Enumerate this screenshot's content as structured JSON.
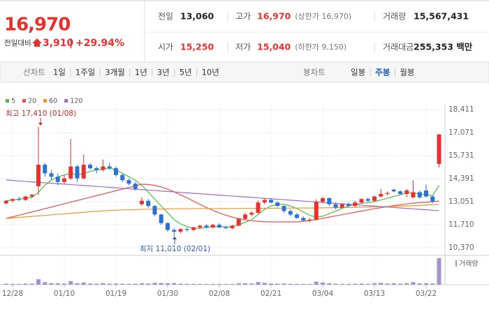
{
  "header": {
    "price": "16,970",
    "change_label": "전일대비",
    "change": "3,910",
    "change_rate": "+29.94%",
    "rows": [
      [
        {
          "label": "전일",
          "value": "13,060"
        },
        {
          "label": "고가",
          "value": "16,970",
          "note": "(상한가 16,970)"
        },
        {
          "label": "거래량",
          "value": "15,567,431"
        }
      ],
      [
        {
          "label": "시가",
          "value": "15,250"
        },
        {
          "label": "저가",
          "value": "15,040",
          "note": "(하한가 9,150)"
        },
        {
          "label": "거래대금",
          "value": "255,353 백만"
        }
      ]
    ]
  },
  "toolbar": {
    "line_chart": "선차트",
    "periods": [
      "1일",
      "1주일",
      "3개월",
      "1년",
      "3년",
      "5년",
      "10년"
    ],
    "candle_chart": "봉차트",
    "candle_types": [
      "일봉",
      "주봉",
      "월봉"
    ],
    "selected_candle_type": 1
  },
  "chart_data": {
    "type": "candlestick",
    "annotations": {
      "high": "최고 17,410 (01/08)",
      "low": "최저 11,010 (02/01)"
    },
    "volume_label": "거래량",
    "up_color": "#e8312f",
    "down_color": "#2a72d6",
    "volume_color": "#a592cf",
    "categories": [
      null,
      "12/28",
      null,
      null,
      null,
      null,
      null,
      null,
      null,
      "01/10",
      null,
      null,
      null,
      null,
      null,
      null,
      null,
      "01/19",
      null,
      null,
      null,
      null,
      null,
      null,
      null,
      "01/30",
      null,
      null,
      null,
      null,
      null,
      null,
      null,
      "02/08",
      null,
      null,
      null,
      null,
      null,
      null,
      null,
      "02/21",
      null,
      null,
      null,
      null,
      null,
      null,
      null,
      "03/04",
      null,
      null,
      null,
      null,
      null,
      null,
      null,
      "03/13",
      null,
      null,
      null,
      null,
      null,
      null,
      null,
      "03/22",
      null,
      null
    ],
    "open": [
      12950,
      13100,
      13200,
      13150,
      13350,
      13950,
      15200,
      14700,
      14500,
      14200,
      14400,
      15100,
      14400,
      15200,
      15000,
      14900,
      15100,
      15000,
      14600,
      14300,
      14100,
      12900,
      13100,
      12800,
      12300,
      11800,
      11400,
      11300,
      11450,
      11400,
      11550,
      11650,
      11550,
      11700,
      11550,
      11500,
      11650,
      12050,
      12300,
      12400,
      13000,
      13150,
      13000,
      12800,
      12500,
      12300,
      12100,
      11950,
      12000,
      13050,
      13250,
      12900,
      12700,
      12900,
      12800,
      13000,
      13200,
      13100,
      13350,
      13500,
      13750,
      13650,
      13500,
      13300,
      13600,
      13700,
      13350,
      15250
    ],
    "high": [
      13150,
      13250,
      13350,
      13400,
      13500,
      17410,
      15300,
      14900,
      14700,
      14600,
      16700,
      15200,
      15800,
      15300,
      15100,
      15500,
      15300,
      15100,
      14700,
      14400,
      14200,
      13300,
      13200,
      12850,
      12350,
      11850,
      11500,
      11500,
      11550,
      11600,
      11700,
      11750,
      11750,
      11800,
      11650,
      11700,
      12100,
      12400,
      12500,
      13100,
      13250,
      13250,
      13050,
      12850,
      12600,
      12400,
      12200,
      12100,
      13200,
      13350,
      13300,
      13000,
      12950,
      13000,
      13100,
      13250,
      13300,
      13400,
      13800,
      13650,
      13800,
      13700,
      13800,
      14300,
      13700,
      14050,
      13400,
      16970
    ],
    "low": [
      12900,
      13000,
      13100,
      13100,
      13250,
      13450,
      14500,
      14300,
      14000,
      14100,
      14300,
      14200,
      14350,
      14900,
      14700,
      14800,
      14900,
      14500,
      14200,
      14000,
      13700,
      12800,
      12700,
      12200,
      11700,
      11300,
      11010,
      11200,
      11300,
      11350,
      11450,
      11500,
      11500,
      11500,
      11450,
      11450,
      11600,
      12000,
      12200,
      12350,
      12900,
      12950,
      12750,
      12400,
      12200,
      12050,
      11900,
      11850,
      11950,
      12950,
      12800,
      12600,
      12650,
      12750,
      12750,
      12950,
      13050,
      13050,
      13300,
      13400,
      13600,
      13450,
      13300,
      13250,
      13200,
      13300,
      12950,
      15040
    ],
    "close": [
      13100,
      13200,
      13150,
      13350,
      13450,
      15200,
      14700,
      14500,
      14200,
      14400,
      15100,
      14400,
      15200,
      15000,
      14900,
      15100,
      15000,
      14600,
      14300,
      14100,
      13800,
      13100,
      12800,
      12300,
      11800,
      11400,
      11300,
      11450,
      11400,
      11550,
      11650,
      11550,
      11700,
      11550,
      11500,
      11650,
      12050,
      12300,
      12400,
      13000,
      13150,
      13000,
      12800,
      12500,
      12300,
      12100,
      11950,
      12000,
      13050,
      13250,
      12900,
      12700,
      12900,
      12800,
      13000,
      13200,
      13100,
      13350,
      13500,
      13550,
      13650,
      13500,
      13700,
      13600,
      13300,
      13350,
      13060,
      16970
    ],
    "volume": [
      600000,
      500000,
      450000,
      700000,
      650000,
      3200000,
      1500000,
      900000,
      800000,
      700000,
      2100000,
      900000,
      1300000,
      700000,
      600000,
      900000,
      600000,
      700000,
      600000,
      500000,
      600000,
      900000,
      700000,
      1100000,
      1000000,
      900000,
      1000000,
      600000,
      500000,
      500000,
      450000,
      400000,
      400000,
      450000,
      400000,
      400000,
      800000,
      900000,
      700000,
      1600000,
      1100000,
      700000,
      600000,
      700000,
      500000,
      500000,
      450000,
      400000,
      1800000,
      1300000,
      800000,
      600000,
      500000,
      450000,
      600000,
      700000,
      500000,
      900000,
      1100000,
      700000,
      800000,
      600000,
      900000,
      1500000,
      800000,
      900000,
      700000,
      15567431
    ],
    "volume_ylim": [
      0,
      15567431
    ],
    "series": [
      {
        "name": "5",
        "color": "#52b947",
        "values": [
          13100,
          13150,
          13200,
          13250,
          13300,
          13600,
          14000,
          14300,
          14500,
          14600,
          14700,
          14600,
          14700,
          14800,
          14900,
          14950,
          15000,
          14900,
          14700,
          14500,
          14300,
          14000,
          13600,
          13200,
          12800,
          12400,
          12000,
          11750,
          11600,
          11500,
          11500,
          11550,
          11580,
          11600,
          11580,
          11600,
          11700,
          11850,
          12000,
          12300,
          12600,
          12800,
          12900,
          12900,
          12800,
          12650,
          12450,
          12250,
          12150,
          12200,
          12350,
          12500,
          12650,
          12800,
          12900,
          12950,
          13000,
          13050,
          13150,
          13250,
          13350,
          13450,
          13550,
          13550,
          13500,
          13450,
          13400,
          14000
        ]
      },
      {
        "name": "20",
        "color": "#e8504a",
        "values": [
          12070,
          12165,
          12260,
          12355,
          12450,
          12545,
          12640,
          12735,
          12830,
          12925,
          13020,
          13115,
          13210,
          13305,
          13400,
          13495,
          13590,
          13685,
          13780,
          13875,
          13970,
          14065,
          14050,
          14000,
          13900,
          13780,
          13620,
          13450,
          13270,
          13080,
          12890,
          12710,
          12540,
          12390,
          12260,
          12150,
          12060,
          11990,
          11940,
          11900,
          11880,
          11870,
          11870,
          11870,
          11870,
          11870,
          11900,
          11950,
          12010,
          12080,
          12150,
          12220,
          12290,
          12360,
          12430,
          12500,
          12570,
          12640,
          12700,
          12760,
          12820,
          12870,
          12920,
          12960,
          13000,
          13020,
          13040,
          13090
        ]
      },
      {
        "name": "60",
        "color": "#f0962e",
        "values": [
          12070,
          12100,
          12130,
          12160,
          12190,
          12220,
          12250,
          12280,
          12310,
          12340,
          12370,
          12400,
          12430,
          12460,
          12490,
          12510,
          12530,
          12550,
          12570,
          12580,
          12590,
          12600,
          12610,
          12615,
          12620,
          12625,
          12630,
          12635,
          12640,
          12640,
          12645,
          12645,
          12650,
          12650,
          12650,
          12655,
          12655,
          12660,
          12660,
          12660,
          12665,
          12665,
          12670,
          12670,
          12675,
          12675,
          12680,
          12680,
          12685,
          12690,
          12695,
          12700,
          12705,
          12710,
          12720,
          12730,
          12740,
          12750,
          12760,
          12770,
          12780,
          12790,
          12800,
          12810,
          12830,
          12850,
          12870,
          12890
        ]
      },
      {
        "name": "120",
        "color": "#9b6cc8",
        "values": [
          14310,
          14283,
          14257,
          14230,
          14203,
          14177,
          14150,
          14123,
          14097,
          14070,
          14043,
          14017,
          13990,
          13963,
          13937,
          13910,
          13883,
          13857,
          13830,
          13803,
          13777,
          13750,
          13723,
          13697,
          13670,
          13643,
          13617,
          13590,
          13563,
          13537,
          13510,
          13483,
          13457,
          13430,
          13403,
          13377,
          13350,
          13323,
          13297,
          13270,
          13243,
          13217,
          13190,
          13163,
          13137,
          13110,
          13083,
          13057,
          13030,
          13003,
          12977,
          12950,
          12923,
          12897,
          12870,
          12843,
          12817,
          12790,
          12763,
          12737,
          12710,
          12683,
          12657,
          12630,
          12603,
          12577,
          12550,
          12523
        ]
      }
    ],
    "ylim": [
      9960,
      18700
    ],
    "yticks": [
      {
        "value": 10370,
        "label": "10,370"
      },
      {
        "value": 11710,
        "label": "11,710"
      },
      {
        "value": 13051,
        "label": "13,051"
      },
      {
        "value": 14391,
        "label": "14,391"
      },
      {
        "value": 15731,
        "label": "15,731"
      },
      {
        "value": 17071,
        "label": "17,071"
      },
      {
        "value": 18411,
        "label": "18,411"
      }
    ],
    "grid": true
  }
}
